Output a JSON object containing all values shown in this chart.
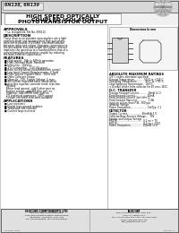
{
  "bg_outer": "#d0d0d0",
  "bg_page": "#ffffff",
  "bg_header": "#e0e0e0",
  "bg_footer": "#e8e8e8",
  "border_dark": "#444444",
  "border_mid": "#888888",
  "text_dark": "#111111",
  "text_mid": "#333333",
  "title_part": "6N138, 6N139",
  "main_title_line1": "HIGH SPEED OPTICALLY",
  "main_title_line2": "COUPLED ISOLATOR",
  "main_title_line3": "PHOTOTRANSISTOR OUTPUT",
  "approvals_title": "APPROVALS",
  "approvals_bullet": "UL recognised, File No. E96125",
  "description_title": "DESCRIPTION",
  "description_lines": [
    "These devices incorporate optocouplers use a light",
    "emitting diode and an integrated high gain photo-",
    "detector to provide 2500Vrms  electrical isolation",
    "between input and output. Separate connections to",
    "the photodiode bias and output darlington collector",
    "improves the speed up to a hundred times that of a",
    "conventional phototransistor coupler by reducing",
    "the base-collector capacitance."
  ],
  "features_title": "FEATURES",
  "features": [
    "High speed - 1Mc to 50MHz operation",
    "High Common Mode Transient",
    "Immunity - 10kV/us",
    "TTL Compatible - 5.5V Vf typical",
    "Base access allows Gain/Bandwidth control",
    "Low Input Current Requirements - 0.5mA",
    "High Current Transfer Ratio - 300% min",
    "Open Collector Output",
    "Open Vo - 70V, Supply Voltage: 5 max",
    "60-130kbit improved noise shield which",
    "provides superior common mode rejection",
    "Options:",
    "Better lead spread - add S after part no.",
    "Surface mount - add SM after part no.",
    "Topbend - add SMPBF after part no.",
    "1% statistical guarantee: 300% speed",
    "Custom electrical selections available"
  ],
  "applications_title": "APPLICATIONS",
  "applications": [
    "Line receivers",
    "Digital logic ground isolation",
    "Telephone line isolation",
    "Current loop receivers"
  ],
  "dim_title": "Dimensions In mm",
  "abs_title": "ABSOLUTE MAXIMUM RATINGS",
  "abs_sub": "(25°C unless otherwise specified)",
  "abs_items": [
    "Storage Temperature..........  -55°C to +125°C",
    "Operating Temperature........  -40°C to + 85°C",
    "Lead Soldering Temperature..  260°C",
    "<10 mA if driven from collector for 60 secs: 260C"
  ],
  "dc_title": "D.C. TRANSFER",
  "dc_items": [
    "Storage Forward Current..........  30mA (1.1)",
    "Peak Forward Current..............  50mA",
    "Peak Forward Current (see note 1)",
    "Peak Forward Transient.............  1.0A",
    "Input on at less than P.W.: 300 pps",
    "Isolation Voltage",
    "Power Dissipation....................  Cat/Typ: 2.1"
  ],
  "det_title": "DETECTOR",
  "det_items": [
    "Output Current.................  40mA At 5 V",
    "Collector-Base Reverse Voltage...  70V",
    "Emitter and Output Voltage",
    "6N138................................  8.2 ea + 7V",
    "6N139................................  8.2 ea + 1000",
    "Power Dissipation..............  100mW (4 x)"
  ],
  "co1_name": "ISOCOM COMPONENTS LTD",
  "co1_lines": [
    "Unit 17B, Park Place Road West,",
    "Park View Industrial Estate, Blayda Road",
    "Harlequin, Cleveland, TS24 7VB",
    "Tel: 01429 863666  Fax: 01429 863901"
  ],
  "co2_name": "ISOCOM",
  "co2_lines": [
    "5024 N Olcutt St, Ave, Suite 204,",
    "Illino, CA 75062, USA",
    "Tel: 214 513 864 070 72ax: 214 564 1055",
    "email: info@isocom.com",
    "http://www.isocom.com"
  ],
  "footer_left": "DS N138, N139",
  "footer_right": "ISOCOM 1.1"
}
